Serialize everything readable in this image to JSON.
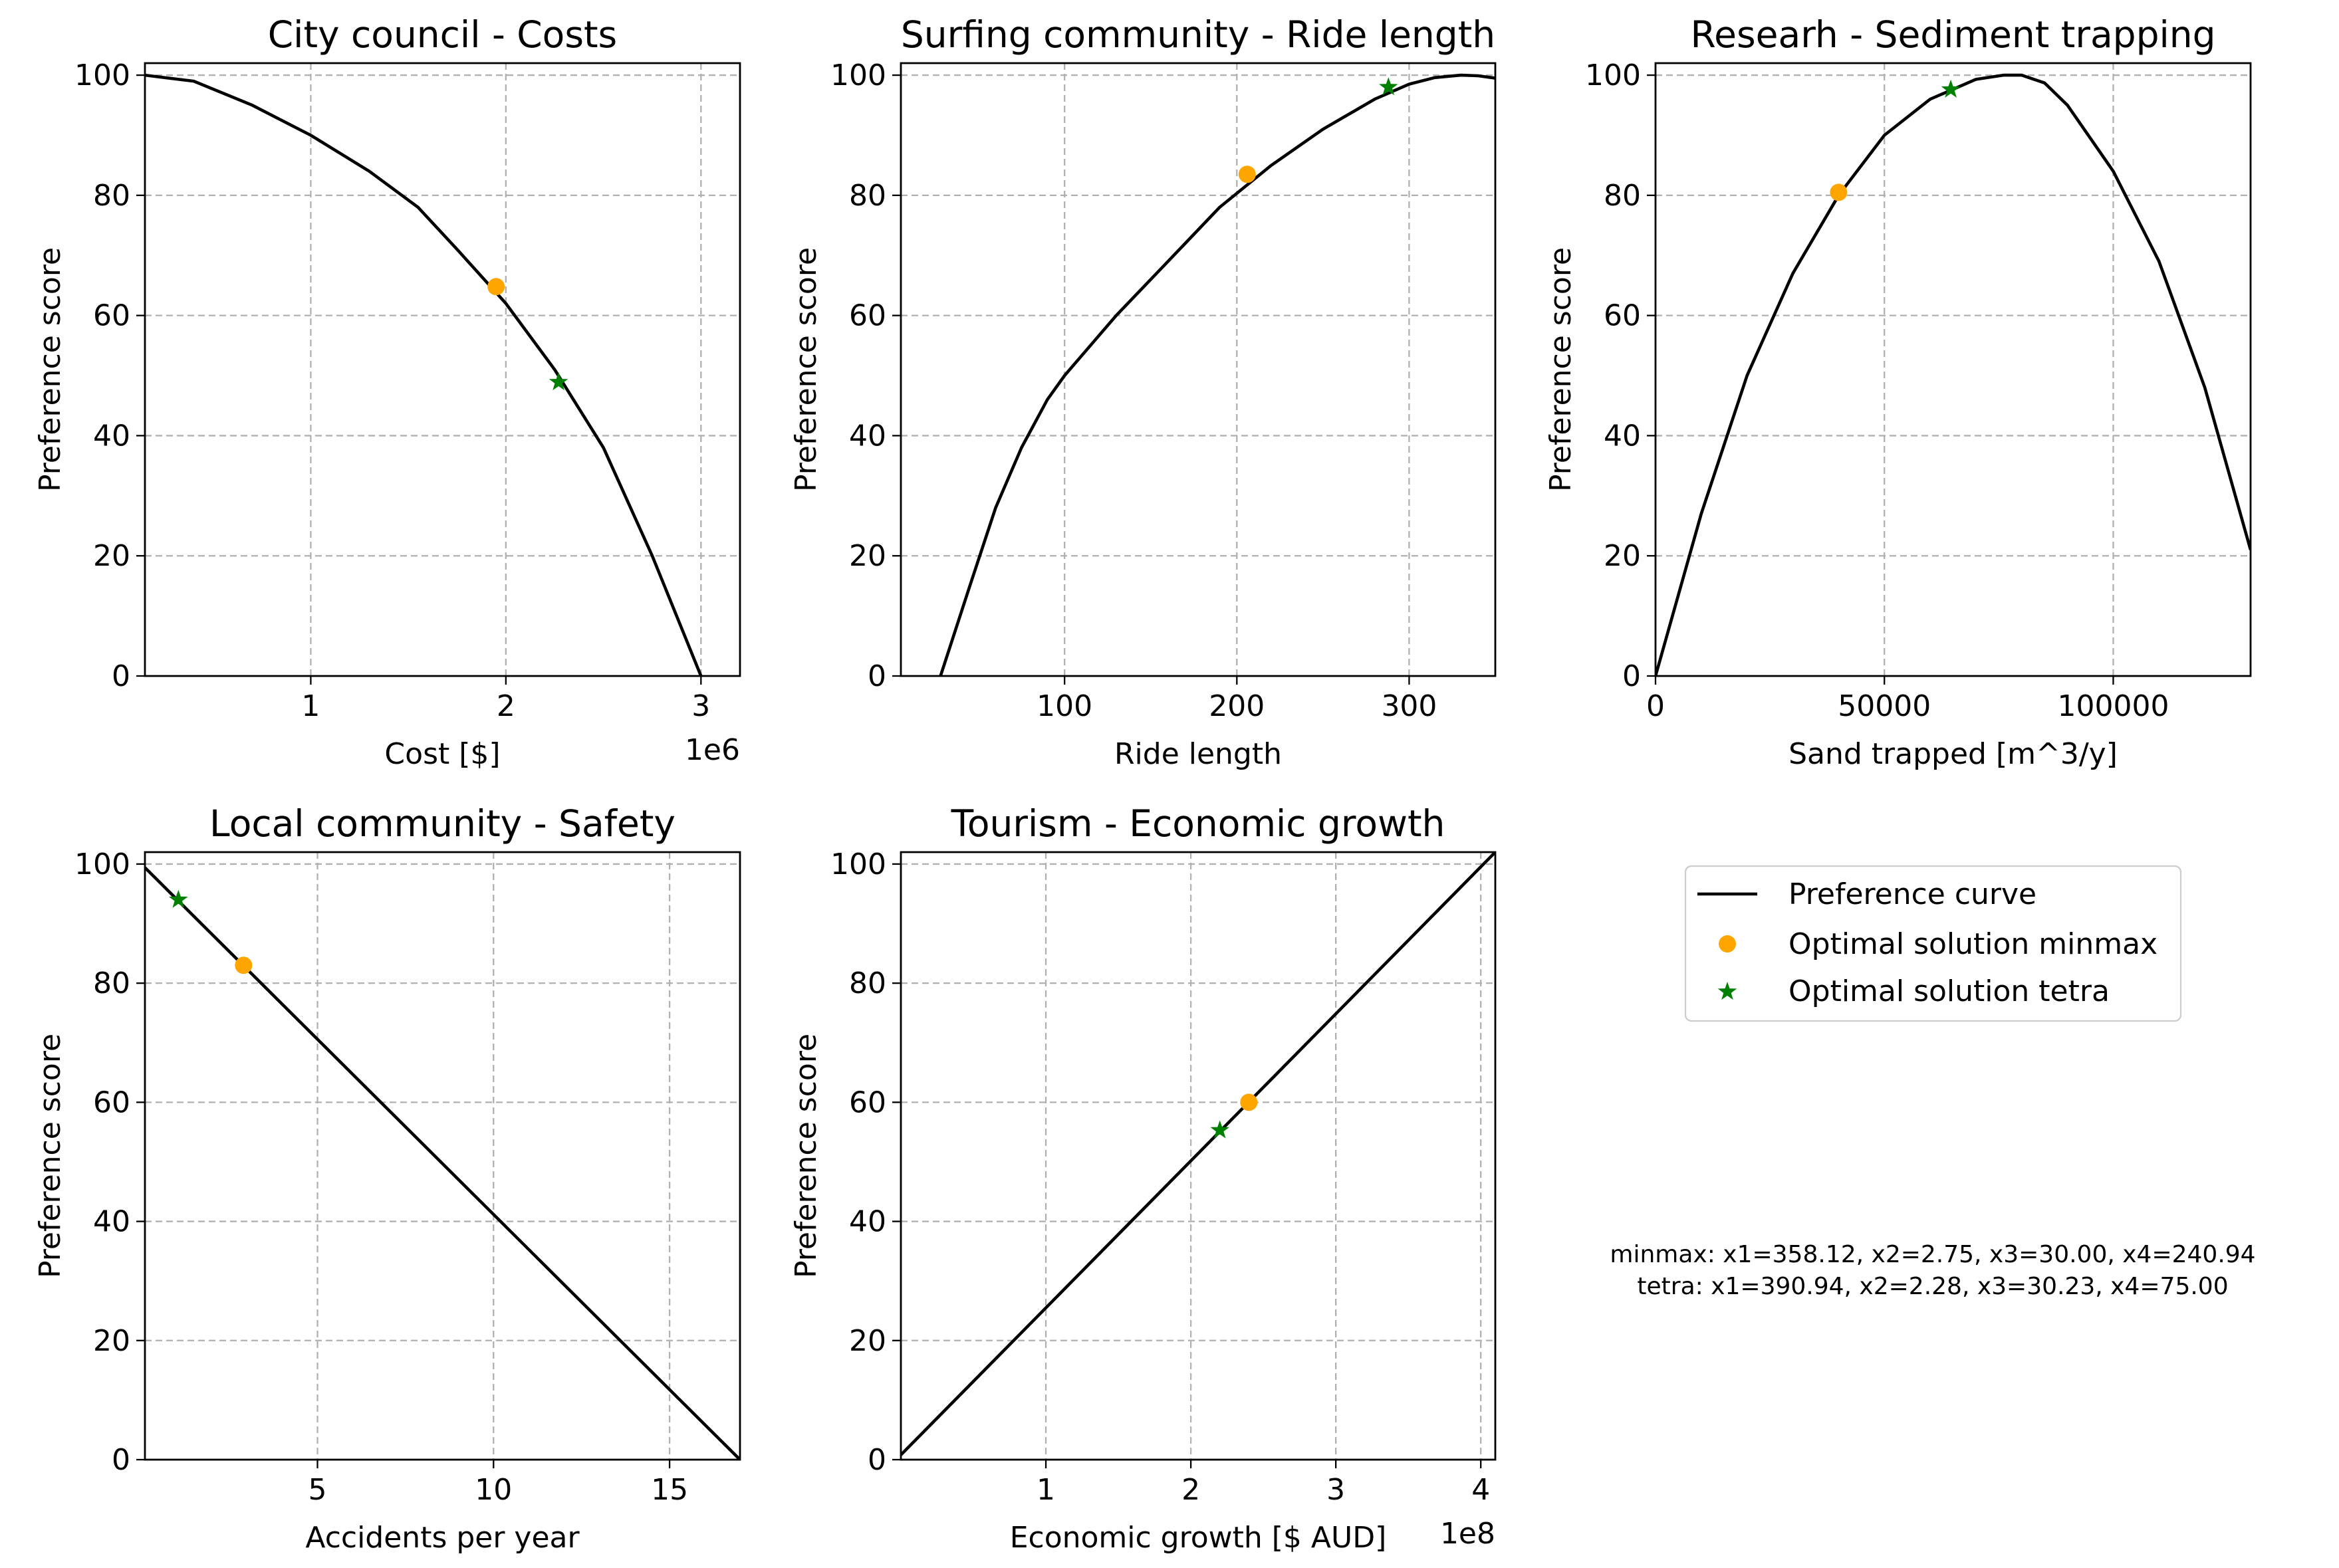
{
  "chart_data": [
    {
      "type": "line",
      "title": "City council - Costs",
      "xlabel": "Cost [$]",
      "ylabel": "Preference score",
      "x_offset_label": "1e6",
      "xlim": [
        150000,
        3200000
      ],
      "ylim": [
        0,
        102
      ],
      "xticks": [
        1000000,
        2000000,
        3000000
      ],
      "xtick_labels": [
        "1",
        "2",
        "3"
      ],
      "yticks": [
        0,
        20,
        40,
        60,
        80,
        100
      ],
      "ytick_labels": [
        "0",
        "20",
        "40",
        "60",
        "80",
        "100"
      ],
      "grid": true,
      "curve": {
        "name": "Preference curve",
        "x": [
          150000,
          400000,
          700000,
          1000000,
          1300000,
          1550000,
          1750000,
          2000000,
          2250000,
          2500000,
          2750000,
          3000000
        ],
        "y": [
          100,
          99,
          95,
          90,
          84,
          78,
          71,
          62,
          51,
          38,
          20,
          0
        ]
      },
      "points": {
        "minmax": {
          "x": 1950000,
          "y": 64.8
        },
        "tetra": {
          "x": 2270000,
          "y": 48.9
        }
      }
    },
    {
      "type": "line",
      "title": "Surfing community - Ride length",
      "xlabel": "Ride length",
      "ylabel": "Preference score",
      "x_offset_label": "",
      "xlim": [
        5,
        350
      ],
      "ylim": [
        0,
        102
      ],
      "xticks": [
        100,
        200,
        300
      ],
      "xtick_labels": [
        "100",
        "200",
        "300"
      ],
      "yticks": [
        0,
        20,
        40,
        60,
        80,
        100
      ],
      "ytick_labels": [
        "0",
        "20",
        "40",
        "60",
        "80",
        "100"
      ],
      "grid": true,
      "curve": {
        "name": "Preference curve",
        "x": [
          28,
          45,
          60,
          75,
          90,
          100,
          130,
          160,
          190,
          220,
          250,
          280,
          300,
          315,
          330,
          340,
          350
        ],
        "y": [
          0,
          15,
          28,
          38,
          46,
          50,
          60,
          69,
          78,
          85,
          91,
          96,
          98.5,
          99.6,
          100,
          99.9,
          99.5
        ]
      },
      "points": {
        "minmax": {
          "x": 206,
          "y": 83.5
        },
        "tetra": {
          "x": 288,
          "y": 98
        }
      }
    },
    {
      "type": "line",
      "title": "Researh - Sediment trapping",
      "xlabel": "Sand trapped [m^3/y]",
      "ylabel": "Preference score",
      "x_offset_label": "",
      "xlim": [
        0,
        130000
      ],
      "ylim": [
        0,
        102
      ],
      "xticks": [
        0,
        50000,
        100000
      ],
      "xtick_labels": [
        "0",
        "50000",
        "100000"
      ],
      "yticks": [
        0,
        20,
        40,
        60,
        80,
        100
      ],
      "ytick_labels": [
        "0",
        "20",
        "40",
        "60",
        "80",
        "100"
      ],
      "grid": true,
      "curve": {
        "name": "Preference curve",
        "x": [
          0,
          10000,
          20000,
          30000,
          40000,
          50000,
          60000,
          70000,
          76000,
          80000,
          85000,
          90000,
          100000,
          110000,
          120000,
          130000
        ],
        "y": [
          0,
          27,
          50,
          67,
          80,
          90,
          96,
          99.3,
          100,
          100,
          98.7,
          95,
          84,
          69,
          48,
          21
        ]
      },
      "points": {
        "minmax": {
          "x": 40000,
          "y": 80.5
        },
        "tetra": {
          "x": 64500,
          "y": 97.6
        }
      }
    },
    {
      "type": "line",
      "title": "Local community - Safety",
      "xlabel": "Accidents per year",
      "ylabel": "Preference score",
      "x_offset_label": "",
      "xlim": [
        0.1,
        17
      ],
      "ylim": [
        0,
        102
      ],
      "xticks": [
        5,
        10,
        15
      ],
      "xtick_labels": [
        "5",
        "10",
        "15"
      ],
      "yticks": [
        0,
        20,
        40,
        60,
        80,
        100
      ],
      "ytick_labels": [
        "0",
        "20",
        "40",
        "60",
        "80",
        "100"
      ],
      "grid": true,
      "curve": {
        "name": "Preference curve",
        "x": [
          0.1,
          17
        ],
        "y": [
          99.4,
          0
        ]
      },
      "points": {
        "minmax": {
          "x": 2.9,
          "y": 83
        },
        "tetra": {
          "x": 1.05,
          "y": 94
        }
      }
    },
    {
      "type": "line",
      "title": "Tourism - Economic growth",
      "xlabel": "Economic growth [$ AUD]",
      "ylabel": "Preference score",
      "x_offset_label": "1e8",
      "xlim": [
        0,
        410000000
      ],
      "ylim": [
        0,
        102
      ],
      "xticks": [
        100000000,
        200000000,
        300000000,
        400000000
      ],
      "xtick_labels": [
        "1",
        "2",
        "3",
        "4"
      ],
      "yticks": [
        0,
        20,
        40,
        60,
        80,
        100
      ],
      "ytick_labels": [
        "0",
        "20",
        "40",
        "60",
        "80",
        "100"
      ],
      "grid": true,
      "curve": {
        "name": "Preference curve",
        "x": [
          0,
          410000000
        ],
        "y": [
          0.8,
          102
        ]
      },
      "points": {
        "minmax": {
          "x": 240000000,
          "y": 60
        },
        "tetra": {
          "x": 220000000,
          "y": 55.3
        }
      }
    }
  ],
  "legend": {
    "entries": [
      {
        "label": "Preference curve",
        "type": "line",
        "color": "#000000"
      },
      {
        "label": "Optimal solution minmax",
        "type": "circle",
        "color": "#ffa500"
      },
      {
        "label": "Optimal solution tetra",
        "type": "star",
        "color": "#008000"
      }
    ]
  },
  "note": {
    "line1": "minmax: x1=358.12, x2=2.75, x3=30.00, x4=240.94",
    "line2": "tetra: x1=390.94, x2=2.28, x3=30.23, x4=75.00"
  },
  "colors": {
    "minmax": "#ffa500",
    "tetra": "#008000",
    "curve": "#000000"
  }
}
